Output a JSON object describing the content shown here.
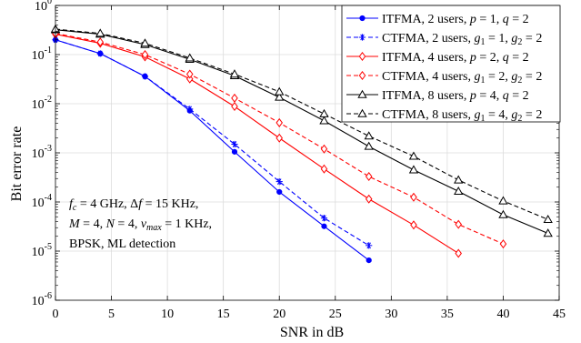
{
  "chart_data": {
    "type": "line",
    "xlabel": "SNR in dB",
    "ylabel": "Bit error rate",
    "xlim": [
      0,
      45
    ],
    "ylim_log10": [
      -6,
      0
    ],
    "yscale": "log",
    "grid": true,
    "legend_position": "top-right",
    "x_ticks": [
      "0",
      "5",
      "10",
      "15",
      "20",
      "25",
      "30",
      "35",
      "40",
      "45"
    ],
    "y_ticks": [
      {
        "base": "10",
        "exp": "0"
      },
      {
        "base": "10",
        "exp": "-1"
      },
      {
        "base": "10",
        "exp": "-2"
      },
      {
        "base": "10",
        "exp": "-3"
      },
      {
        "base": "10",
        "exp": "-4"
      },
      {
        "base": "10",
        "exp": "-5"
      },
      {
        "base": "10",
        "exp": "-6"
      }
    ],
    "annotation": [
      "f_c = 4 GHz, Δf = 15 KHz,",
      "M = 4, N = 4, ν_max = 1 KHz,",
      "BPSK, ML detection"
    ],
    "series": [
      {
        "name": "ITFMA, 2 users, p = 1, q = 2",
        "color": "#0000ff",
        "marker": "dot",
        "dash": "solid",
        "x": [
          0,
          4,
          8,
          12,
          16,
          20,
          24,
          28
        ],
        "y": [
          0.2,
          0.105,
          0.036,
          0.0072,
          0.00105,
          0.00016,
          3.2e-05,
          6.5e-06
        ]
      },
      {
        "name": "CTFMA, 2 users, g1 = 1, g2 = 2",
        "color": "#0000ff",
        "marker": "star",
        "dash": "dashed",
        "x": [
          0,
          4,
          8,
          12,
          16,
          20,
          24,
          28
        ],
        "y": [
          0.2,
          0.105,
          0.036,
          0.0078,
          0.0015,
          0.00026,
          4.7e-05,
          1.3e-05
        ]
      },
      {
        "name": "ITFMA, 4 users, p = 2, q = 2",
        "color": "#ff0000",
        "marker": "diamond",
        "dash": "solid",
        "x": [
          0,
          4,
          8,
          12,
          16,
          20,
          24,
          28,
          32,
          36
        ],
        "y": [
          0.26,
          0.17,
          0.09,
          0.032,
          0.0088,
          0.002,
          0.00047,
          0.000115,
          3.4e-05,
          9e-06
        ]
      },
      {
        "name": "CTFMA, 4 users, g1 = 2, g2 = 2",
        "color": "#ff0000",
        "marker": "diamond",
        "dash": "dashed",
        "x": [
          0,
          4,
          8,
          12,
          16,
          20,
          24,
          28,
          32,
          36,
          40
        ],
        "y": [
          0.27,
          0.18,
          0.1,
          0.04,
          0.013,
          0.0041,
          0.0012,
          0.00033,
          0.000125,
          3.5e-05,
          1.4e-05
        ]
      },
      {
        "name": "ITFMA, 8 users, p = 4, q = 2",
        "color": "#000000",
        "marker": "triangle",
        "dash": "solid",
        "x": [
          0,
          4,
          8,
          12,
          16,
          20,
          24,
          28,
          32,
          36,
          40,
          44
        ],
        "y": [
          0.32,
          0.26,
          0.16,
          0.08,
          0.037,
          0.0135,
          0.0045,
          0.00135,
          0.00045,
          0.000165,
          5.5e-05,
          2.3e-05
        ]
      },
      {
        "name": "CTFMA, 8 users, g1 = 4, g2 = 2",
        "color": "#000000",
        "marker": "triangle",
        "dash": "dashed",
        "x": [
          0,
          4,
          8,
          12,
          16,
          20,
          24,
          28,
          32,
          36,
          40,
          44
        ],
        "y": [
          0.33,
          0.27,
          0.17,
          0.085,
          0.04,
          0.0175,
          0.0062,
          0.0022,
          0.00085,
          0.00028,
          0.000105,
          4.4e-05
        ]
      }
    ]
  }
}
